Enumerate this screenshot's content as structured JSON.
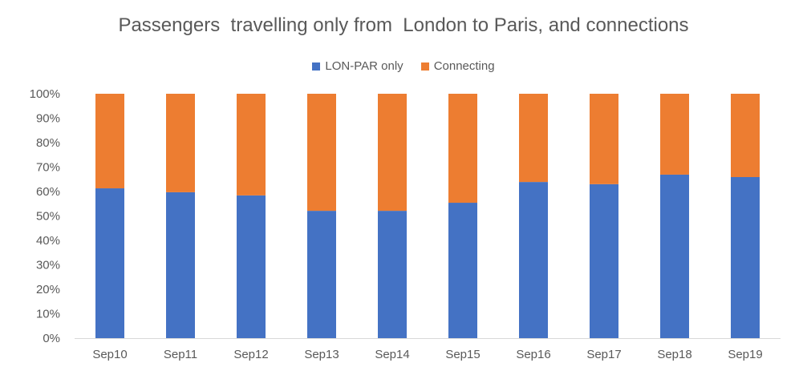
{
  "chart_data": {
    "type": "bar",
    "stacked": true,
    "title": "Passengers  travelling only from  London to Paris, and connections",
    "xlabel": "",
    "ylabel": "",
    "ylim": [
      0,
      100
    ],
    "yticks": [
      "0%",
      "10%",
      "20%",
      "30%",
      "40%",
      "50%",
      "60%",
      "70%",
      "80%",
      "90%",
      "100%"
    ],
    "legend_position": "top",
    "categories": [
      "Sep10",
      "Sep11",
      "Sep12",
      "Sep13",
      "Sep14",
      "Sep15",
      "Sep16",
      "Sep17",
      "Sep18",
      "Sep19"
    ],
    "series": [
      {
        "name": "LON-PAR only",
        "color": "#4472C4",
        "values": [
          61.3,
          59.7,
          58.4,
          52.1,
          52.1,
          55.4,
          63.9,
          63.0,
          66.9,
          65.9
        ]
      },
      {
        "name": "Connecting",
        "color": "#ED7D31",
        "values": [
          38.7,
          40.3,
          41.6,
          47.9,
          47.9,
          44.6,
          36.1,
          37.0,
          33.1,
          34.1
        ]
      }
    ]
  }
}
